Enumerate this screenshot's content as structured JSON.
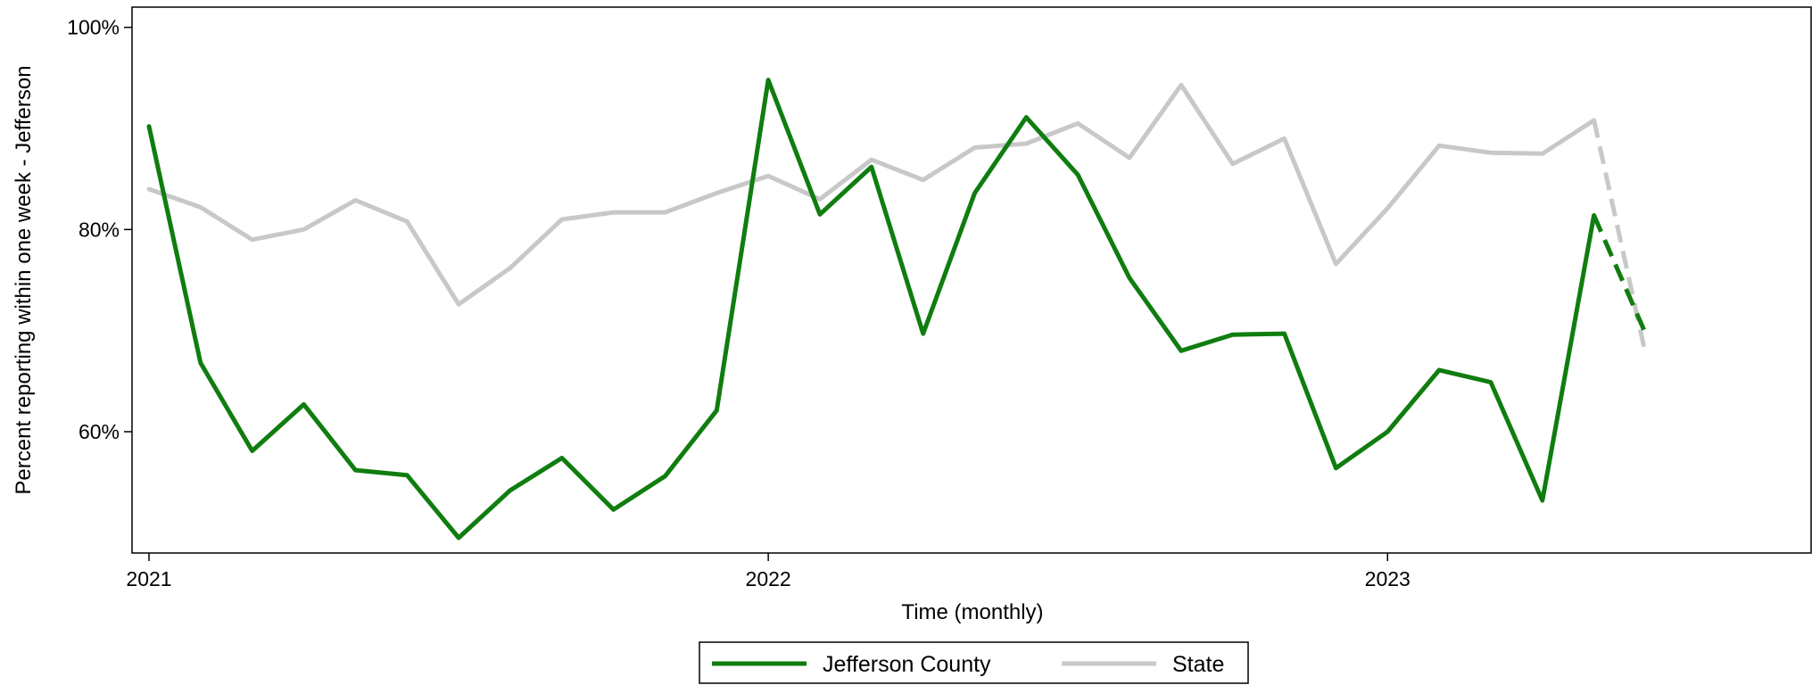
{
  "chart_data": {
    "type": "line",
    "xlabel": "Time (monthly)",
    "ylabel": "Percent reporting within one week - Jefferson",
    "x_ticks": [
      "2021",
      "2022",
      "2023"
    ],
    "y_ticks": [
      "60%",
      "80%",
      "100%"
    ],
    "x_range": [
      "2021-01",
      "2023-09"
    ],
    "ylim": [
      48,
      102
    ],
    "x": [
      "2021-01",
      "2021-02",
      "2021-03",
      "2021-04",
      "2021-05",
      "2021-06",
      "2021-07",
      "2021-08",
      "2021-09",
      "2021-10",
      "2021-11",
      "2021-12",
      "2022-01",
      "2022-02",
      "2022-03",
      "2022-04",
      "2022-05",
      "2022-06",
      "2022-07",
      "2022-08",
      "2022-09",
      "2022-10",
      "2022-11",
      "2022-12",
      "2023-01",
      "2023-02",
      "2023-03",
      "2023-04",
      "2023-05",
      "2023-06",
      "2023-07",
      "2023-08",
      "2023-09"
    ],
    "dashed_last_segment": true,
    "series": [
      {
        "name": "Jefferson County",
        "color": "#0f7d0f",
        "values": [
          90.2,
          66.8,
          58.1,
          62.7,
          56.2,
          55.7,
          49.5,
          54.2,
          57.4,
          52.3,
          55.6,
          62.1,
          94.8,
          81.5,
          86.2,
          69.7,
          83.6,
          91.1,
          85.4,
          75.2,
          68.0,
          69.6,
          69.7,
          56.4,
          60.0,
          66.1,
          64.9,
          53.2,
          81.4,
          69.7,
          null,
          null,
          null
        ]
      },
      {
        "name": "State",
        "color": "#c8c8c8",
        "values": [
          84.0,
          82.2,
          79.0,
          80.0,
          82.9,
          80.8,
          72.6,
          76.2,
          81.0,
          81.7,
          81.7,
          83.6,
          85.3,
          83.0,
          86.9,
          84.9,
          88.1,
          88.5,
          90.5,
          87.1,
          94.3,
          86.5,
          89.0,
          76.6,
          82.1,
          88.3,
          87.6,
          87.5,
          90.8,
          67.7,
          null,
          null,
          null
        ]
      }
    ],
    "legend_position": "bottom",
    "grid": false
  }
}
